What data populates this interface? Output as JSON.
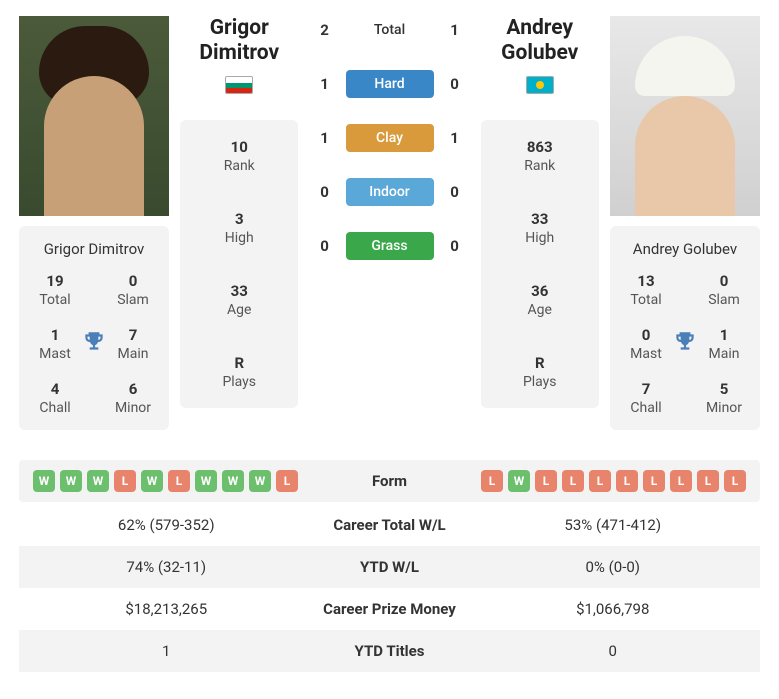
{
  "colors": {
    "win_badge": "#6cbf6c",
    "loss_badge": "#e8846b",
    "hard": "#3a87c8",
    "clay": "#d89a3a",
    "indoor": "#5aa8d8",
    "grass": "#3aa84a",
    "card_bg": "#f3f3f3",
    "trophy": "#4a7fb8"
  },
  "player1": {
    "name_first": "Grigor",
    "name_last": "Dimitrov",
    "full_name": "Grigor Dimitrov",
    "flag": "bul",
    "titles": {
      "total": {
        "num": "19",
        "label": "Total"
      },
      "slam": {
        "num": "0",
        "label": "Slam"
      },
      "mast": {
        "num": "1",
        "label": "Mast"
      },
      "main": {
        "num": "7",
        "label": "Main"
      },
      "chall": {
        "num": "4",
        "label": "Chall"
      },
      "minor": {
        "num": "6",
        "label": "Minor"
      }
    },
    "rank": {
      "num": "10",
      "label": "Rank"
    },
    "high": {
      "num": "3",
      "label": "High"
    },
    "age": {
      "num": "33",
      "label": "Age"
    },
    "plays": {
      "num": "R",
      "label": "Plays"
    },
    "form": [
      "W",
      "W",
      "W",
      "L",
      "W",
      "L",
      "W",
      "W",
      "W",
      "L"
    ],
    "career_wl": "62% (579-352)",
    "ytd_wl": "74% (32-11)",
    "prize": "$18,213,265",
    "ytd_titles": "1"
  },
  "player2": {
    "name_first": "Andrey",
    "name_last": "Golubev",
    "full_name": "Andrey Golubev",
    "flag": "kaz",
    "titles": {
      "total": {
        "num": "13",
        "label": "Total"
      },
      "slam": {
        "num": "0",
        "label": "Slam"
      },
      "mast": {
        "num": "0",
        "label": "Mast"
      },
      "main": {
        "num": "1",
        "label": "Main"
      },
      "chall": {
        "num": "7",
        "label": "Chall"
      },
      "minor": {
        "num": "5",
        "label": "Minor"
      }
    },
    "rank": {
      "num": "863",
      "label": "Rank"
    },
    "high": {
      "num": "33",
      "label": "High"
    },
    "age": {
      "num": "36",
      "label": "Age"
    },
    "plays": {
      "num": "R",
      "label": "Plays"
    },
    "form": [
      "L",
      "W",
      "L",
      "L",
      "L",
      "L",
      "L",
      "L",
      "L",
      "L"
    ],
    "career_wl": "53% (471-412)",
    "ytd_wl": "0% (0-0)",
    "prize": "$1,066,798",
    "ytd_titles": "0"
  },
  "h2h": {
    "total": {
      "p1": "2",
      "label": "Total",
      "p2": "1"
    },
    "surfaces": [
      {
        "p1": "1",
        "label": "Hard",
        "p2": "0",
        "color_key": "hard"
      },
      {
        "p1": "1",
        "label": "Clay",
        "p2": "1",
        "color_key": "clay"
      },
      {
        "p1": "0",
        "label": "Indoor",
        "p2": "0",
        "color_key": "indoor"
      },
      {
        "p1": "0",
        "label": "Grass",
        "p2": "0",
        "color_key": "grass"
      }
    ]
  },
  "labels": {
    "form": "Form",
    "career_wl": "Career Total W/L",
    "ytd_wl": "YTD W/L",
    "prize": "Career Prize Money",
    "ytd_titles": "YTD Titles"
  }
}
